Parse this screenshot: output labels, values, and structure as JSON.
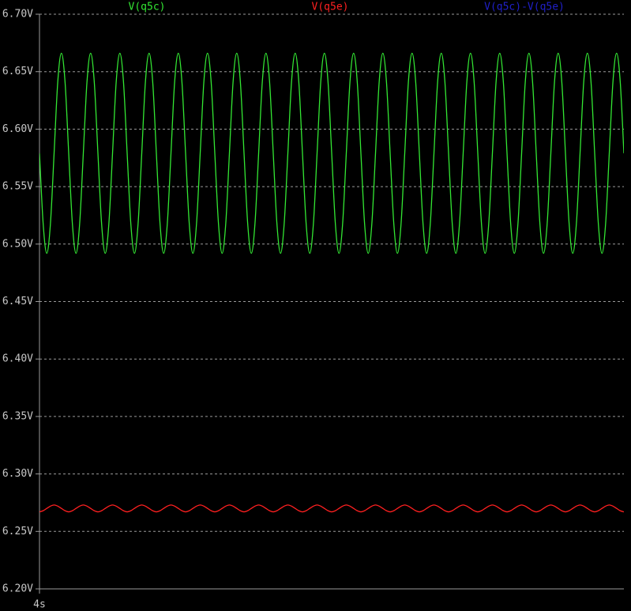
{
  "chart_data": {
    "type": "line",
    "series": [
      {
        "name": "V(q5c)",
        "color": "#33e633",
        "values": [
          6.579,
          6.518,
          6.492,
          6.518,
          6.579,
          6.641,
          6.666,
          6.641,
          6.579,
          6.518,
          6.492,
          6.518,
          6.579,
          6.641,
          6.666,
          6.641,
          6.579,
          6.518,
          6.492,
          6.518,
          6.579,
          6.641,
          6.666,
          6.641,
          6.579,
          6.518,
          6.492,
          6.518,
          6.579,
          6.641,
          6.666,
          6.641,
          6.579,
          6.518,
          6.492,
          6.518,
          6.579,
          6.641,
          6.666,
          6.641,
          6.579,
          6.518,
          6.492,
          6.518,
          6.579,
          6.641,
          6.666,
          6.641,
          6.579,
          6.518,
          6.492,
          6.518,
          6.579,
          6.641,
          6.666,
          6.641,
          6.579,
          6.518,
          6.492,
          6.518,
          6.579,
          6.641,
          6.666,
          6.641,
          6.579,
          6.518,
          6.492,
          6.518,
          6.579,
          6.641,
          6.666,
          6.641,
          6.579,
          6.518,
          6.492,
          6.518,
          6.579,
          6.641,
          6.666,
          6.641,
          6.579,
          6.518,
          6.492,
          6.518,
          6.579,
          6.641,
          6.666,
          6.641,
          6.579,
          6.518,
          6.492,
          6.518,
          6.579,
          6.641,
          6.666,
          6.641,
          6.579,
          6.518,
          6.492,
          6.518,
          6.579,
          6.641,
          6.666,
          6.641,
          6.579,
          6.518,
          6.492,
          6.518,
          6.579,
          6.641,
          6.666,
          6.641,
          6.579,
          6.518,
          6.492,
          6.518,
          6.579,
          6.641,
          6.666,
          6.641,
          6.579,
          6.518,
          6.492,
          6.518,
          6.579,
          6.641,
          6.666,
          6.641,
          6.579,
          6.518,
          6.492,
          6.518,
          6.579,
          6.641,
          6.666,
          6.641,
          6.579,
          6.518,
          6.492,
          6.518,
          6.579,
          6.641,
          6.666,
          6.641,
          6.579,
          6.518,
          6.492,
          6.518,
          6.579,
          6.641,
          6.666,
          6.641,
          6.579,
          6.518,
          6.492,
          6.518,
          6.579,
          6.641,
          6.666,
          6.641,
          6.579
        ]
      },
      {
        "name": "V(q5e)",
        "color": "#ff2020",
        "values": [
          6.267,
          6.268,
          6.27,
          6.272,
          6.273,
          6.272,
          6.27,
          6.268,
          6.267,
          6.268,
          6.27,
          6.272,
          6.273,
          6.272,
          6.27,
          6.268,
          6.267,
          6.268,
          6.27,
          6.272,
          6.273,
          6.272,
          6.27,
          6.268,
          6.267,
          6.268,
          6.27,
          6.272,
          6.273,
          6.272,
          6.27,
          6.268,
          6.267,
          6.268,
          6.27,
          6.272,
          6.273,
          6.272,
          6.27,
          6.268,
          6.267,
          6.268,
          6.27,
          6.272,
          6.273,
          6.272,
          6.27,
          6.268,
          6.267,
          6.268,
          6.27,
          6.272,
          6.273,
          6.272,
          6.27,
          6.268,
          6.267,
          6.268,
          6.27,
          6.272,
          6.273,
          6.272,
          6.27,
          6.268,
          6.267,
          6.268,
          6.27,
          6.272,
          6.273,
          6.272,
          6.27,
          6.268,
          6.267,
          6.268,
          6.27,
          6.272,
          6.273,
          6.272,
          6.27,
          6.268,
          6.267,
          6.268,
          6.27,
          6.272,
          6.273,
          6.272,
          6.27,
          6.268,
          6.267,
          6.268,
          6.27,
          6.272,
          6.273,
          6.272,
          6.27,
          6.268,
          6.267,
          6.268,
          6.27,
          6.272,
          6.273,
          6.272,
          6.27,
          6.268,
          6.267,
          6.268,
          6.27,
          6.272,
          6.273,
          6.272,
          6.27,
          6.268,
          6.267,
          6.268,
          6.27,
          6.272,
          6.273,
          6.272,
          6.27,
          6.268,
          6.267,
          6.268,
          6.27,
          6.272,
          6.273,
          6.272,
          6.27,
          6.268,
          6.267,
          6.268,
          6.27,
          6.272,
          6.273,
          6.272,
          6.27,
          6.268,
          6.267,
          6.268,
          6.27,
          6.272,
          6.273,
          6.272,
          6.27,
          6.268,
          6.267,
          6.268,
          6.27,
          6.272,
          6.273,
          6.272,
          6.27,
          6.268,
          6.267,
          6.268,
          6.27,
          6.272,
          6.273,
          6.272,
          6.27,
          6.268,
          6.267
        ]
      },
      {
        "name": "V(q5c)-V(q5e)",
        "color": "#2020c8"
      }
    ],
    "x": [
      4,
      4.000125,
      4.00025,
      4.000375,
      4.0005,
      4.000625,
      4.00075,
      4.000875,
      4.001,
      4.001125,
      4.00125,
      4.001375,
      4.0015,
      4.001625,
      4.00175,
      4.001875,
      4.002,
      4.002125,
      4.00225,
      4.002375,
      4.0025,
      4.002625,
      4.00275,
      4.002875,
      4.003,
      4.003125,
      4.00325,
      4.003375,
      4.0035,
      4.003625,
      4.00375,
      4.003875,
      4.004,
      4.004125,
      4.00425,
      4.004375,
      4.0045,
      4.004625,
      4.00475,
      4.004875,
      4.005,
      4.005125,
      4.00525,
      4.005375,
      4.0055,
      4.005625,
      4.00575,
      4.005875,
      4.006,
      4.006125,
      4.00625,
      4.006375,
      4.0065,
      4.006625,
      4.00675,
      4.006875,
      4.007,
      4.007125,
      4.00725,
      4.007375,
      4.0075,
      4.007625,
      4.00775,
      4.007875,
      4.008,
      4.008125,
      4.00825,
      4.008375,
      4.0085,
      4.008625,
      4.00875,
      4.008875,
      4.009,
      4.009125,
      4.00925,
      4.009375,
      4.0095,
      4.009625,
      4.00975,
      4.009875,
      4.01,
      4.010125,
      4.01025,
      4.010375,
      4.0105,
      4.010625,
      4.01075,
      4.010875,
      4.011,
      4.011125,
      4.01125,
      4.011375,
      4.0115,
      4.011625,
      4.01175,
      4.011875,
      4.012,
      4.012125,
      4.01225,
      4.012375,
      4.0125,
      4.012625,
      4.01275,
      4.012875,
      4.013,
      4.013125,
      4.01325,
      4.013375,
      4.0135,
      4.013625,
      4.01375,
      4.013875,
      4.014,
      4.014125,
      4.01425,
      4.014375,
      4.0145,
      4.014625,
      4.01475,
      4.014875,
      4.015,
      4.015125,
      4.01525,
      4.015375,
      4.0155,
      4.015625,
      4.01575,
      4.015875,
      4.016,
      4.016125,
      4.01625,
      4.016375,
      4.0165,
      4.016625,
      4.01675,
      4.016875,
      4.017,
      4.017125,
      4.01725,
      4.017375,
      4.0175,
      4.017625,
      4.01775,
      4.017875,
      4.018,
      4.018125,
      4.01825,
      4.018375,
      4.0185,
      4.018625,
      4.01875,
      4.018875,
      4.019,
      4.019125,
      4.01925,
      4.019375,
      4.0195,
      4.019625,
      4.01975,
      4.019875,
      4.02
    ],
    "xlim": [
      4,
      4.02
    ],
    "xticks": [
      {
        "value": 4,
        "label": "4s"
      }
    ],
    "ylim": [
      6.2,
      6.7
    ],
    "yticks": [
      {
        "value": 6.2,
        "label": "6.20V"
      },
      {
        "value": 6.25,
        "label": "6.25V"
      },
      {
        "value": 6.3,
        "label": "6.30V"
      },
      {
        "value": 6.35,
        "label": "6.35V"
      },
      {
        "value": 6.4,
        "label": "6.40V"
      },
      {
        "value": 6.45,
        "label": "6.45V"
      },
      {
        "value": 6.5,
        "label": "6.50V"
      },
      {
        "value": 6.55,
        "label": "6.55V"
      },
      {
        "value": 6.6,
        "label": "6.60V"
      },
      {
        "value": 6.65,
        "label": "6.65V"
      },
      {
        "value": 6.7,
        "label": "6.70V"
      }
    ],
    "grid": true
  }
}
